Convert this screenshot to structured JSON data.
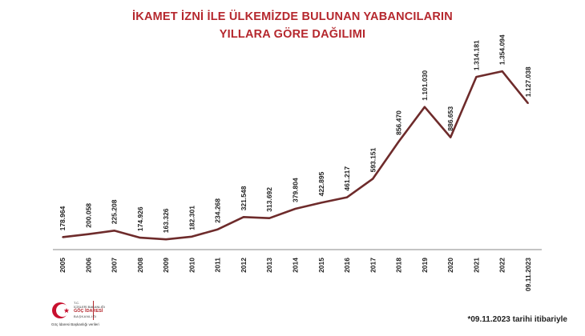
{
  "title_line1": "İKAMET İZNİ İLE ÜLKEMİZDE BULUNAN YABANCILARIN",
  "title_line2": "YILLARA GÖRE DAĞILIMI",
  "footnote": "*09.11.2023 tarihi itibariyle",
  "logo": {
    "line1": "T.C.",
    "line2": "İÇİŞLERİ BAKANLIĞI",
    "line3": "GÖÇ İDARESİ",
    "line4": "BAŞKANLIĞI",
    "caption": "Göç İdaresi Başkanlığı verileri"
  },
  "chart_data": {
    "type": "line",
    "title": "İKAMET İZNİ İLE ÜLKEMİZDE BULUNAN YABANCILARIN YILLARA GÖRE DAĞILIMI",
    "categories": [
      "2005",
      "2006",
      "2007",
      "2008",
      "2009",
      "2010",
      "2011",
      "2012",
      "2013",
      "2014",
      "2015",
      "2016",
      "2017",
      "2018",
      "2019",
      "2020",
      "2021",
      "2022",
      "09.11.2023"
    ],
    "values": [
      178964,
      200058,
      225208,
      174926,
      163326,
      182301,
      234268,
      321548,
      313692,
      379804,
      422895,
      461217,
      593151,
      856470,
      1101030,
      886653,
      1314181,
      1354094,
      1127038
    ],
    "value_labels": [
      "178.964",
      "200.058",
      "225.208",
      "174.926",
      "163.326",
      "182.301",
      "234.268",
      "321.548",
      "313.692",
      "379.804",
      "422.895",
      "461.217",
      "593.151",
      "856.470",
      "1.101.030",
      "886.653",
      "1.314.181",
      "1.354.094",
      "1.127.038"
    ],
    "ylim": [
      0,
      1400000
    ],
    "grid": false,
    "line_color": "#6e2b2b"
  }
}
